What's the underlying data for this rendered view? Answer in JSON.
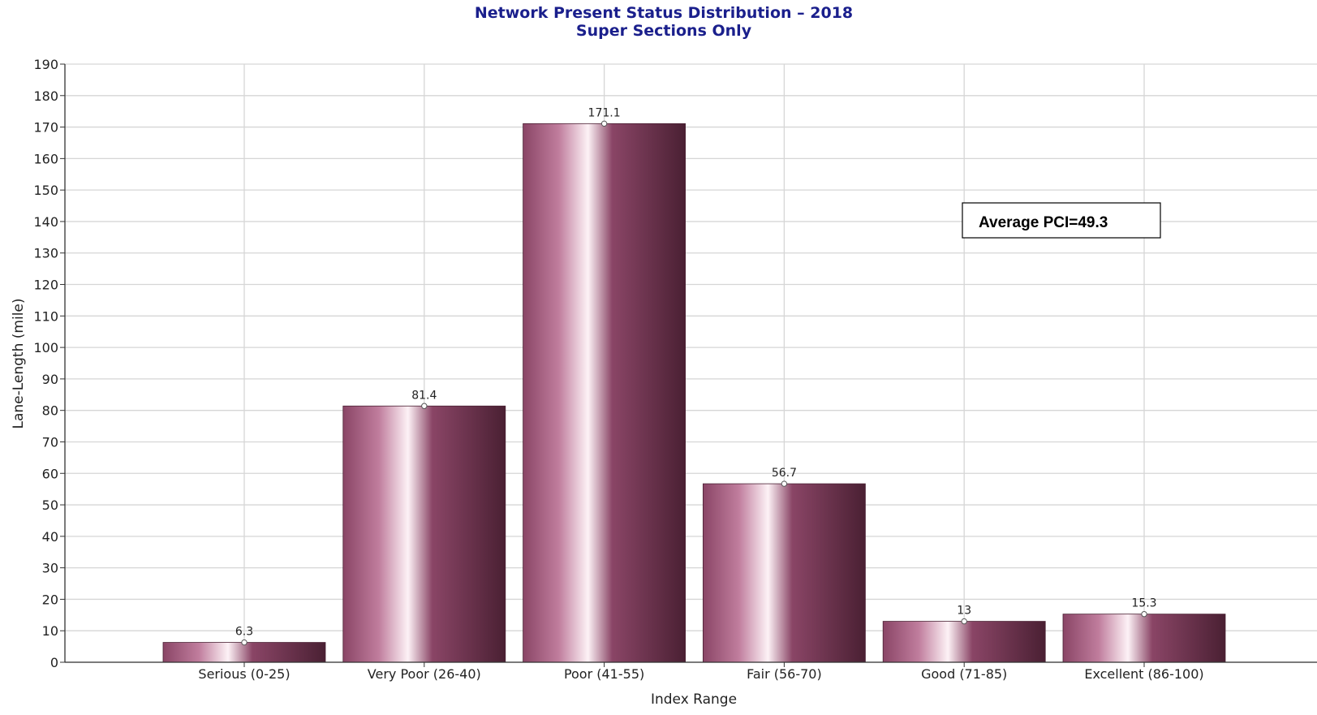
{
  "chart_data": {
    "type": "bar",
    "title": "Network Present Status Distribution – 2018",
    "subtitle": "Super Sections Only",
    "xlabel": "Index Range",
    "ylabel": "Lane-Length (mile)",
    "categories": [
      "Serious (0-25)",
      "Very Poor (26-40)",
      "Poor (41-55)",
      "Fair (56-70)",
      "Good (71-85)",
      "Excellent (86-100)"
    ],
    "values": [
      6.3,
      81.4,
      171.1,
      56.7,
      13,
      15.3
    ],
    "data_labels": [
      "6.3",
      "81.4",
      "171.1",
      "56.7",
      "13",
      "15.3"
    ],
    "ylim": [
      0,
      190
    ],
    "yticks": [
      0,
      10,
      20,
      30,
      40,
      50,
      60,
      70,
      80,
      90,
      100,
      110,
      120,
      130,
      140,
      150,
      160,
      170,
      180,
      190
    ],
    "grid": true,
    "legend": "none",
    "annotation": "Average PCI=49.3",
    "bar_color_dark": "#4a2033",
    "bar_color_mid": "#8a4566",
    "bar_color_light": "#fdf2f6"
  }
}
